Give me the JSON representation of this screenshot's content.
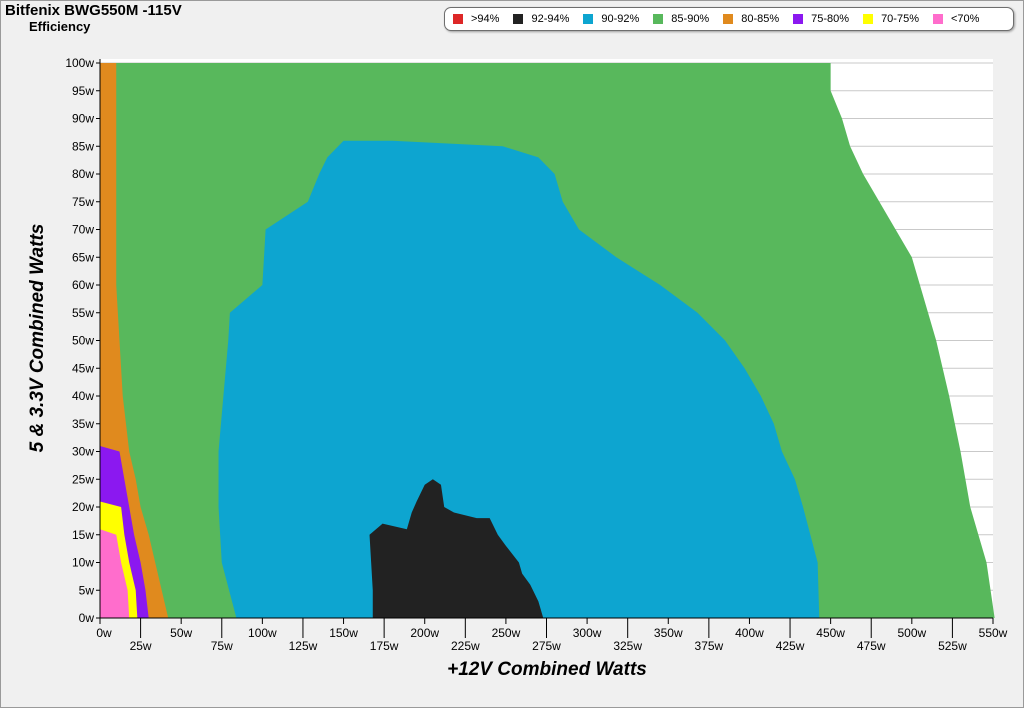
{
  "window": {
    "title": "Bitfenix BWG550M -115V",
    "subtitle": "Efficiency"
  },
  "chart_data": {
    "type": "heatmap",
    "title": "Bitfenix BWG550M -115V",
    "subtitle": "Efficiency",
    "xlabel": "+12V Combined Watts",
    "ylabel": "5 & 3.3V Combined Watts",
    "xlim": [
      0,
      550
    ],
    "ylim": [
      0,
      100
    ],
    "x_ticks": [
      "0w",
      "25w",
      "50w",
      "75w",
      "100w",
      "125w",
      "150w",
      "175w",
      "200w",
      "225w",
      "250w",
      "275w",
      "300w",
      "325w",
      "350w",
      "375w",
      "400w",
      "425w",
      "450w",
      "475w",
      "500w",
      "525w",
      "550w"
    ],
    "y_ticks": [
      "0w",
      "5w",
      "10w",
      "15w",
      "20w",
      "25w",
      "30w",
      "35w",
      "40w",
      "45w",
      "50w",
      "55w",
      "60w",
      "65w",
      "70w",
      "75w",
      "80w",
      "85w",
      "90w",
      "95w",
      "100w"
    ],
    "legend_position": "top-right",
    "grid": true,
    "legend": [
      {
        "label": ">94%",
        "color": "#dd2727"
      },
      {
        "label": "92-94%",
        "color": "#222222"
      },
      {
        "label": "90-92%",
        "color": "#0da5d0"
      },
      {
        "label": "85-90%",
        "color": "#58b85c"
      },
      {
        "label": "80-85%",
        "color": "#e08a1e"
      },
      {
        "label": "75-80%",
        "color": "#8b18f0"
      },
      {
        "label": "70-75%",
        "color": "#ffff00"
      },
      {
        "label": "<70%",
        "color": "#ff6dcc"
      }
    ],
    "regions": {
      "load_limit": [
        [
          0,
          551
        ],
        [
          10,
          546
        ],
        [
          20,
          536
        ],
        [
          30,
          530
        ],
        [
          40,
          523
        ],
        [
          50,
          515
        ],
        [
          60,
          505
        ],
        [
          65,
          500
        ],
        [
          70,
          490
        ],
        [
          75,
          480
        ],
        [
          80,
          470
        ],
        [
          85,
          462
        ],
        [
          90,
          457
        ],
        [
          95,
          450
        ],
        [
          100,
          450
        ]
      ],
      "band_85_90": [
        [
          0,
          443
        ],
        [
          10,
          442
        ],
        [
          20,
          433
        ],
        [
          25,
          428
        ],
        [
          30,
          420
        ],
        [
          35,
          415
        ],
        [
          40,
          407
        ],
        [
          45,
          397
        ],
        [
          50,
          385
        ],
        [
          55,
          368
        ],
        [
          60,
          345
        ],
        [
          65,
          318
        ],
        [
          70,
          295
        ],
        [
          75,
          285
        ],
        [
          80,
          280
        ],
        [
          83,
          270
        ],
        [
          85,
          248
        ],
        [
          86,
          180
        ],
        [
          86,
          150
        ],
        [
          83,
          140
        ],
        [
          80,
          135
        ],
        [
          75,
          128
        ],
        [
          70,
          102
        ],
        [
          60,
          100
        ],
        [
          55,
          80
        ],
        [
          50,
          79
        ],
        [
          40,
          76
        ],
        [
          30,
          73
        ],
        [
          20,
          73
        ],
        [
          10,
          75
        ],
        [
          0,
          84
        ]
      ],
      "band_92_94": [
        [
          0,
          168
        ],
        [
          5,
          168
        ],
        [
          10,
          167
        ],
        [
          15,
          166
        ],
        [
          17,
          174
        ],
        [
          16,
          189
        ],
        [
          19,
          192
        ],
        [
          21,
          195
        ],
        [
          24,
          200
        ],
        [
          25,
          205
        ],
        [
          24,
          210
        ],
        [
          20,
          212
        ],
        [
          19,
          218
        ],
        [
          18,
          232
        ],
        [
          18,
          240
        ],
        [
          15,
          245
        ],
        [
          13,
          250
        ],
        [
          10,
          258
        ],
        [
          8,
          260
        ],
        [
          6,
          265
        ],
        [
          3,
          270
        ],
        [
          0,
          273
        ]
      ],
      "band_80_85": [
        [
          0,
          42
        ],
        [
          5,
          38
        ],
        [
          10,
          34
        ],
        [
          15,
          30
        ],
        [
          20,
          25
        ],
        [
          25,
          22
        ],
        [
          30,
          18
        ],
        [
          35,
          16
        ],
        [
          40,
          14
        ],
        [
          45,
          13
        ],
        [
          50,
          12
        ],
        [
          55,
          11
        ],
        [
          60,
          10
        ],
        [
          100,
          10
        ]
      ],
      "band_75_80": [
        [
          0,
          30
        ],
        [
          5,
          28
        ],
        [
          10,
          25
        ],
        [
          15,
          21
        ],
        [
          20,
          18
        ],
        [
          25,
          15
        ],
        [
          30,
          12
        ],
        [
          31,
          0
        ]
      ],
      "band_70_75": [
        [
          0,
          23
        ],
        [
          5,
          22
        ],
        [
          10,
          18
        ],
        [
          15,
          15
        ],
        [
          20,
          13
        ],
        [
          21,
          0
        ]
      ],
      "band_lt70": [
        [
          0,
          18
        ],
        [
          5,
          17
        ],
        [
          10,
          13
        ],
        [
          15,
          10
        ],
        [
          16,
          0
        ]
      ]
    }
  }
}
